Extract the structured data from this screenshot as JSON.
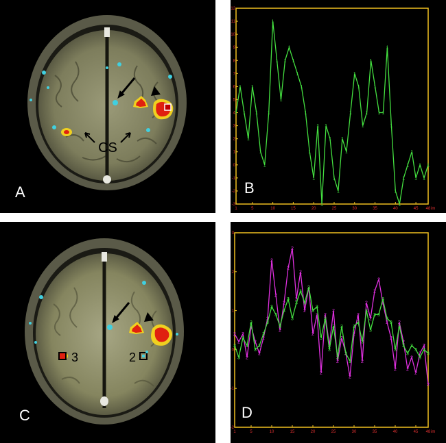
{
  "panels": {
    "a": {
      "letter": "A",
      "label_cs": "CS"
    },
    "b": {
      "letter": "B"
    },
    "c": {
      "letter": "C",
      "roi_left": "3",
      "roi_right": "2"
    },
    "d": {
      "letter": "D"
    }
  },
  "colors": {
    "green": "#44e040",
    "magenta": "#e030e0",
    "axis": "#f0c020",
    "tick": "#e03030"
  },
  "chart_data": [
    {
      "type": "line",
      "panel": "B",
      "x": [
        1,
        2,
        3,
        4,
        5,
        6,
        7,
        8,
        9,
        10,
        11,
        12,
        13,
        14,
        15,
        16,
        17,
        18,
        19,
        20,
        21,
        22,
        23,
        24,
        25,
        26,
        27,
        28,
        29,
        30,
        31,
        32,
        33,
        34,
        35,
        36,
        37,
        38,
        39,
        40,
        41,
        42,
        43,
        44,
        45,
        46,
        47,
        48
      ],
      "series": [
        {
          "name": "",
          "marker": "1",
          "color": "#44e040",
          "values": [
            4,
            6,
            4,
            2,
            6,
            4,
            1,
            0,
            4,
            11,
            8,
            5,
            8,
            9,
            8,
            7,
            6,
            4,
            1,
            -1,
            3,
            -3,
            3,
            2,
            -1,
            -2,
            2,
            1,
            4,
            7,
            6,
            3,
            4,
            8,
            6,
            4,
            4,
            9,
            3,
            -2,
            -3,
            -1,
            0,
            1,
            -1,
            0,
            -1,
            0
          ]
        }
      ],
      "x_ticks": [
        "1",
        "5",
        "10",
        "15",
        "20",
        "25",
        "30",
        "35",
        "40",
        "45",
        "48"
      ],
      "x_tick_suffix": "im",
      "y_ticks": [
        "12",
        "11",
        "10",
        "9",
        "8",
        "7",
        "6",
        "5",
        "4",
        "3",
        "2",
        "1",
        "0",
        "-1",
        "-2",
        "-3"
      ],
      "xlim": [
        1,
        48
      ],
      "ylim": [
        -3,
        12
      ]
    },
    {
      "type": "line",
      "panel": "D",
      "x": [
        1,
        2,
        3,
        4,
        5,
        6,
        7,
        8,
        9,
        10,
        11,
        12,
        13,
        14,
        15,
        16,
        17,
        18,
        19,
        20,
        21,
        22,
        23,
        24,
        25,
        26,
        27,
        28,
        29,
        30,
        31,
        32,
        33,
        34,
        35,
        36,
        37,
        38,
        39,
        40,
        41,
        42,
        43,
        44,
        45,
        46,
        47,
        48
      ],
      "series": [
        {
          "name": "",
          "marker": "2",
          "color": "#e030e0",
          "values": [
            0.4,
            0.2,
            0.4,
            -0.2,
            0.6,
            0.2,
            -0.1,
            0.3,
            0.8,
            2.3,
            1.4,
            0.5,
            1.2,
            2.1,
            2.6,
            1.3,
            2.0,
            1.0,
            1.6,
            0.4,
            0.9,
            -0.6,
            0.9,
            0.1,
            1.0,
            -0.3,
            0.3,
            -0.1,
            -0.7,
            0.4,
            0.9,
            -0.3,
            1.2,
            0.8,
            1.5,
            1.8,
            1.2,
            0.7,
            0.3,
            -0.5,
            0.7,
            0.2,
            -0.5,
            -0.2,
            -0.6,
            -0.1,
            0.1,
            -0.9
          ]
        },
        {
          "name": "",
          "marker": "3",
          "color": "#44e040",
          "values": [
            0.1,
            -0.2,
            0.3,
            0.1,
            0.7,
            0.0,
            0.1,
            0.4,
            0.7,
            1.1,
            0.9,
            0.6,
            1.0,
            1.3,
            0.8,
            1.2,
            1.5,
            1.2,
            1.6,
            1.0,
            1.1,
            0.3,
            0.8,
            0.0,
            0.6,
            -0.2,
            0.6,
            -0.1,
            -0.3,
            0.6,
            0.7,
            0.2,
            1.0,
            0.5,
            0.9,
            0.9,
            1.3,
            0.8,
            0.7,
            0.0,
            0.6,
            0.1,
            -0.1,
            0.1,
            0.0,
            -0.2,
            0.0,
            -0.1
          ]
        }
      ],
      "x_ticks": [
        "1",
        "5",
        "10",
        "15",
        "20",
        "25",
        "30",
        "35",
        "40",
        "45",
        "48"
      ],
      "x_tick_suffix": "im",
      "y_ticks": [
        "3",
        "2",
        "1",
        "0",
        "-1",
        "-2"
      ],
      "xlim": [
        1,
        48
      ],
      "ylim": [
        -2,
        3
      ]
    }
  ]
}
